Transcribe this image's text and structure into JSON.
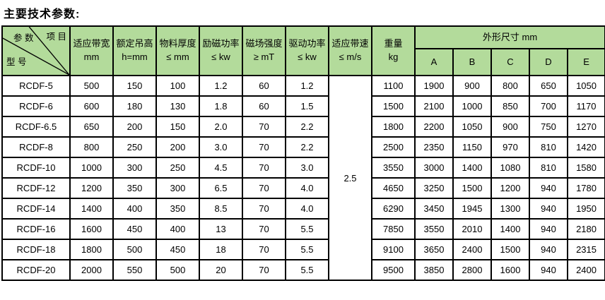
{
  "title": "主要技术参数:",
  "colors": {
    "header_bg": "#b3db9b",
    "border": "#000000",
    "row_bg": "#ffffff"
  },
  "table": {
    "corner": {
      "param": "参 数",
      "item": "项 目",
      "model": "型 号"
    },
    "headers": [
      {
        "line1": "适应带宽",
        "line2": "mm"
      },
      {
        "line1": "额定吊高",
        "line2": "h=mm"
      },
      {
        "line1": "物料厚度",
        "line2": "≤ mm"
      },
      {
        "line1": "励磁功率",
        "line2": "≤ kw"
      },
      {
        "line1": "磁场强度",
        "line2": "≥ mT"
      },
      {
        "line1": "驱动功率",
        "line2": "≤ kw"
      },
      {
        "line1": "适应带速",
        "line2": "≤ m/s"
      },
      {
        "line1": "重量",
        "line2": "kg"
      }
    ],
    "outer_dim_header": "外形尺寸 mm",
    "outer_dim_columns": [
      "A",
      "B",
      "C",
      "D",
      "E"
    ],
    "belt_speed": "2.5",
    "rows": [
      {
        "model": "RCDF-5",
        "values": [
          "500",
          "150",
          "100",
          "1.2",
          "60",
          "1.2",
          "1100",
          "1900",
          "900",
          "800",
          "650",
          "1050"
        ]
      },
      {
        "model": "RCDF-6",
        "values": [
          "600",
          "180",
          "130",
          "1.8",
          "60",
          "1.5",
          "1500",
          "2100",
          "1000",
          "850",
          "700",
          "1170"
        ]
      },
      {
        "model": "RCDF-6.5",
        "values": [
          "650",
          "200",
          "150",
          "2.0",
          "70",
          "2.2",
          "1800",
          "2200",
          "1050",
          "900",
          "750",
          "1270"
        ]
      },
      {
        "model": "RCDF-8",
        "values": [
          "800",
          "250",
          "200",
          "3.0",
          "70",
          "2.2",
          "2500",
          "2350",
          "1150",
          "970",
          "810",
          "1420"
        ]
      },
      {
        "model": "RCDF-10",
        "values": [
          "1000",
          "300",
          "250",
          "4.5",
          "70",
          "3.0",
          "3550",
          "3000",
          "1400",
          "1080",
          "810",
          "1580"
        ]
      },
      {
        "model": "RCDF-12",
        "values": [
          "1200",
          "350",
          "300",
          "6.5",
          "70",
          "4.0",
          "4650",
          "3250",
          "1500",
          "1200",
          "940",
          "1780"
        ]
      },
      {
        "model": "RCDF-14",
        "values": [
          "1400",
          "400",
          "350",
          "8.5",
          "70",
          "4.0",
          "6290",
          "3450",
          "1945",
          "1300",
          "940",
          "1950"
        ]
      },
      {
        "model": "RCDF-16",
        "values": [
          "1600",
          "450",
          "400",
          "13",
          "70",
          "5.5",
          "7850",
          "3550",
          "2010",
          "1400",
          "940",
          "2180"
        ]
      },
      {
        "model": "RCDF-18",
        "values": [
          "1800",
          "500",
          "450",
          "18",
          "70",
          "5.5",
          "9100",
          "3650",
          "2400",
          "1500",
          "940",
          "2315"
        ]
      },
      {
        "model": "RCDF-20",
        "values": [
          "2000",
          "550",
          "500",
          "20",
          "70",
          "5.5",
          "9500",
          "3850",
          "2800",
          "1600",
          "940",
          "2400"
        ]
      }
    ]
  }
}
